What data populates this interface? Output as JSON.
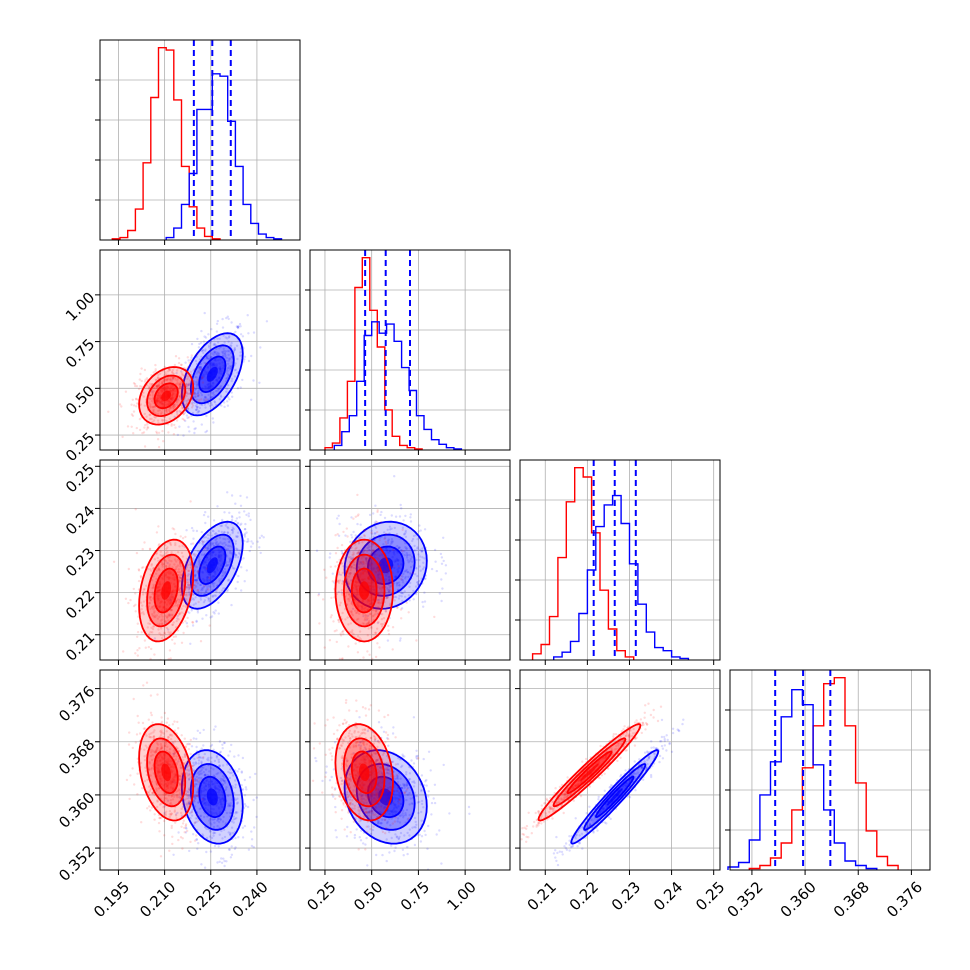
{
  "chart_data": {
    "type": "corner",
    "parameters": [
      {
        "id": "p0",
        "range": [
          0.189,
          0.254
        ],
        "ticks": [
          0.195,
          0.21,
          0.225,
          0.24
        ],
        "tick_labels": [
          "0.195",
          "0.210",
          "0.225",
          "0.240"
        ]
      },
      {
        "id": "p1",
        "range": [
          0.17,
          1.24
        ],
        "ticks": [
          0.25,
          0.5,
          0.75,
          1.0
        ],
        "tick_labels": [
          "0.25",
          "0.50",
          "0.75",
          "1.00"
        ]
      },
      {
        "id": "p2",
        "range": [
          0.204,
          0.2515
        ],
        "ticks": [
          0.21,
          0.22,
          0.23,
          0.24,
          0.25
        ],
        "tick_labels": [
          "0.21",
          "0.22",
          "0.23",
          "0.24",
          "0.25"
        ]
      },
      {
        "id": "p3",
        "range": [
          0.3487,
          0.3788
        ],
        "ticks": [
          0.352,
          0.36,
          0.368,
          0.376
        ],
        "tick_labels": [
          "0.352",
          "0.360",
          "0.368",
          "0.376"
        ]
      }
    ],
    "grid": true,
    "series": [
      {
        "color": "#ff0000",
        "means": [
          0.2105,
          0.46,
          0.2205,
          0.3634
        ],
        "sigmas": [
          0.004,
          0.07,
          0.0055,
          0.0033
        ],
        "correlations": {
          "0-1": 0.3,
          "0-2": 0.3,
          "0-3": -0.3,
          "1-2": 0.0,
          "1-3": -0.2,
          "2-3": 0.97
        },
        "histograms": [
          {
            "edges": [
              0.193,
              0.1955,
              0.198,
              0.2005,
              0.203,
              0.2055,
              0.208,
              0.2105,
              0.213,
              0.2155,
              0.218,
              0.2205,
              0.223,
              0.2255,
              0.228
            ],
            "counts": [
              1,
              2,
              8,
              26,
              65,
              120,
              162,
              160,
              118,
              62,
              28,
              10,
              3,
              1
            ]
          },
          {
            "edges": [
              0.25,
              0.29,
              0.33,
              0.37,
              0.41,
              0.45,
              0.49,
              0.53,
              0.57,
              0.61,
              0.65,
              0.69,
              0.73,
              0.77
            ],
            "counts": [
              2,
              6,
              28,
              60,
              142,
              168,
              122,
              90,
              35,
              12,
              4,
              2,
              1
            ]
          },
          {
            "edges": [
              0.207,
              0.209,
              0.211,
              0.213,
              0.215,
              0.217,
              0.219,
              0.221,
              0.223,
              0.225,
              0.227,
              0.229,
              0.231
            ],
            "counts": [
              4,
              10,
              28,
              66,
              102,
              124,
              118,
              82,
              45,
              20,
              6,
              2
            ]
          },
          {
            "edges": [
              0.3516,
              0.3532,
              0.3548,
              0.3564,
              0.358,
              0.3596,
              0.3612,
              0.3628,
              0.3644,
              0.366,
              0.3676,
              0.3692,
              0.3708,
              0.3724,
              0.374
            ],
            "counts": [
              1,
              3,
              8,
              18,
              40,
              68,
              96,
              124,
              128,
              96,
              58,
              26,
              9,
              3
            ]
          }
        ]
      },
      {
        "color": "#0000ff",
        "means": [
          0.2255,
          0.575,
          0.2265,
          0.3597
        ],
        "sigmas": [
          0.0045,
          0.1,
          0.0047,
          0.0032
        ],
        "correlations": {
          "0-1": 0.5,
          "0-2": 0.5,
          "0-3": -0.2,
          "1-2": 0.1,
          "1-3": -0.2,
          "2-3": 0.97
        },
        "quantiles": [
          [
            0.2195,
            0.2255,
            0.2315
          ],
          [
            0.465,
            0.575,
            0.705
          ],
          [
            0.2215,
            0.2265,
            0.2315
          ],
          [
            0.3555,
            0.3597,
            0.3638
          ]
        ],
        "histograms": [
          {
            "edges": [
              0.2105,
              0.213,
              0.2155,
              0.218,
              0.2205,
              0.2255,
              0.228,
              0.2305,
              0.233,
              0.2355,
              0.238,
              0.2405,
              0.243,
              0.2455,
              0.248
            ],
            "counts": [
              2,
              10,
              30,
              56,
              110,
              140,
              138,
              100,
              62,
              30,
              14,
              5,
              2,
              1
            ]
          },
          {
            "edges": [
              0.3,
              0.34,
              0.38,
              0.42,
              0.46,
              0.5,
              0.54,
              0.58,
              0.62,
              0.66,
              0.7,
              0.74,
              0.78,
              0.82,
              0.86,
              0.9,
              0.94,
              0.98
            ],
            "counts": [
              4,
              16,
              30,
              60,
              100,
              112,
              102,
              110,
              95,
              72,
              52,
              30,
              18,
              9,
              5,
              2,
              1
            ]
          },
          {
            "edges": [
              0.212,
              0.214,
              0.216,
              0.218,
              0.22,
              0.222,
              0.224,
              0.226,
              0.228,
              0.23,
              0.232,
              0.234,
              0.236,
              0.238,
              0.24,
              0.242,
              0.244
            ],
            "counts": [
              2,
              5,
              12,
              30,
              58,
              86,
              100,
              106,
              88,
              62,
              36,
              18,
              8,
              6,
              2,
              1
            ]
          },
          {
            "edges": [
              0.3484,
              0.35,
              0.3516,
              0.3532,
              0.3548,
              0.3564,
              0.358,
              0.3596,
              0.3612,
              0.3628,
              0.3644,
              0.366,
              0.3676,
              0.3692,
              0.3708
            ],
            "counts": [
              2,
              5,
              20,
              50,
              72,
              102,
              120,
              110,
              70,
              40,
              18,
              6,
              3,
              1
            ]
          }
        ]
      }
    ]
  }
}
